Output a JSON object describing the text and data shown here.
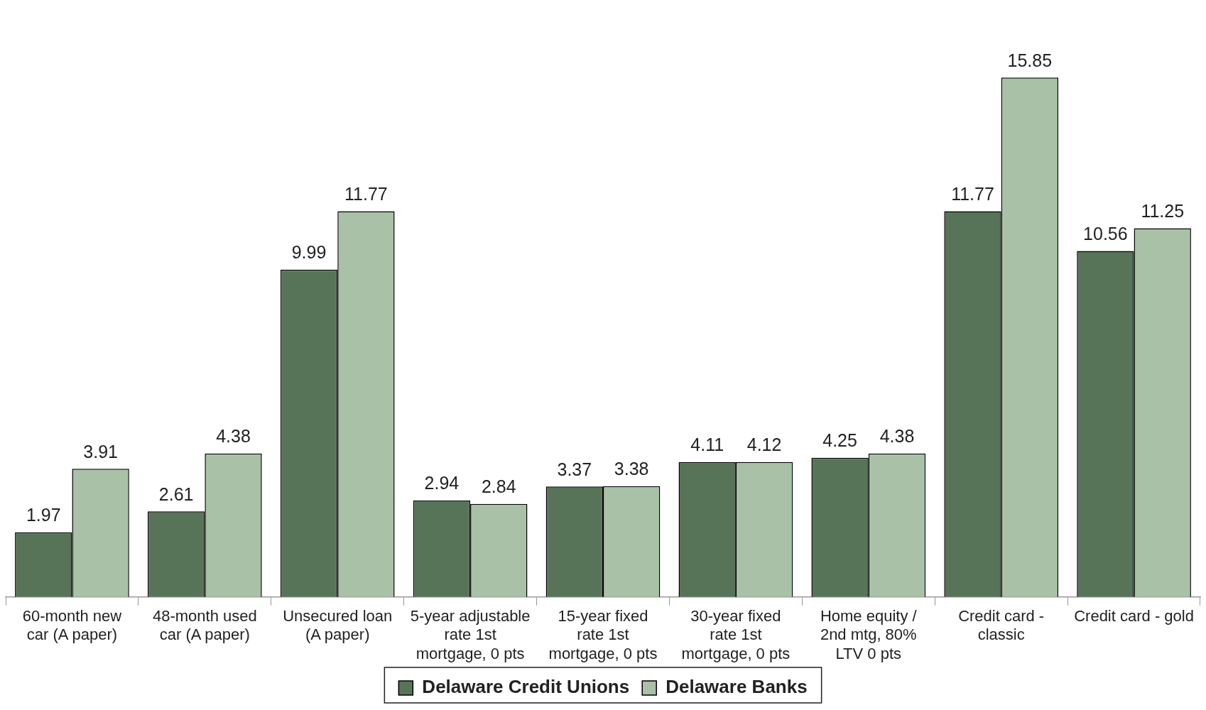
{
  "chart_data": {
    "type": "bar",
    "categories": [
      "60-month new car (A paper)",
      "48-month used car (A paper)",
      "Unsecured loan (A paper)",
      "5-year adjustable rate 1st mortgage, 0 pts",
      "15-year fixed rate 1st mortgage, 0 pts",
      "30-year fixed rate 1st mortgage, 0 pts",
      "Home equity / 2nd mtg, 80% LTV 0 pts",
      "Credit card - classic",
      "Credit card - gold"
    ],
    "series": [
      {
        "name": "Delaware Credit Unions",
        "color": "#587458",
        "values": [
          1.97,
          2.61,
          9.99,
          2.94,
          3.37,
          4.11,
          4.25,
          11.77,
          10.56
        ]
      },
      {
        "name": "Delaware Banks",
        "color": "#a9c1a6",
        "values": [
          3.91,
          4.38,
          11.77,
          2.84,
          3.38,
          4.12,
          4.38,
          15.85,
          11.25
        ]
      }
    ],
    "data_labels": true,
    "legend": "bottom",
    "grid": false
  }
}
